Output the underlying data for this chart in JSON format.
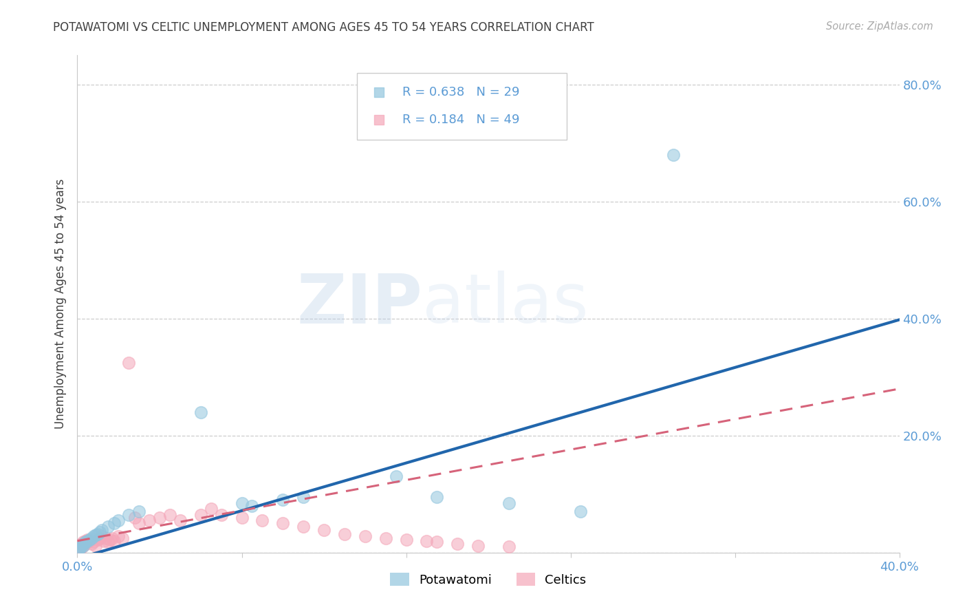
{
  "title": "POTAWATOMI VS CELTIC UNEMPLOYMENT AMONG AGES 45 TO 54 YEARS CORRELATION CHART",
  "source": "Source: ZipAtlas.com",
  "ylabel": "Unemployment Among Ages 45 to 54 years",
  "xlim": [
    0.0,
    0.4
  ],
  "ylim": [
    0.0,
    0.85
  ],
  "xticks": [
    0.0,
    0.08,
    0.16,
    0.24,
    0.32,
    0.4
  ],
  "yticks": [
    0.0,
    0.2,
    0.4,
    0.6,
    0.8
  ],
  "right_ytick_labels": [
    "",
    "20.0%",
    "40.0%",
    "60.0%",
    "80.0%"
  ],
  "xtick_labels": [
    "0.0%",
    "",
    "",
    "",
    "",
    "40.0%"
  ],
  "watermark_zip": "ZIP",
  "watermark_atlas": "atlas",
  "blue_R": "0.638",
  "blue_N": "29",
  "pink_R": "0.184",
  "pink_N": "49",
  "blue_scatter_color": "#92c5de",
  "pink_scatter_color": "#f4a7b9",
  "blue_line_color": "#2166ac",
  "pink_line_color": "#d6637a",
  "grid_color": "#c8c8c8",
  "axis_tick_color": "#5b9bd5",
  "title_color": "#404040",
  "legend_label_blue": "Potawatomi",
  "legend_label_pink": "Celtics",
  "blue_scatter_x": [
    0.001,
    0.001,
    0.002,
    0.003,
    0.003,
    0.004,
    0.005,
    0.006,
    0.007,
    0.008,
    0.009,
    0.01,
    0.011,
    0.012,
    0.015,
    0.018,
    0.02,
    0.025,
    0.03,
    0.06,
    0.08,
    0.085,
    0.1,
    0.11,
    0.155,
    0.175,
    0.21,
    0.245,
    0.29
  ],
  "blue_scatter_y": [
    0.005,
    0.008,
    0.01,
    0.012,
    0.015,
    0.018,
    0.02,
    0.022,
    0.025,
    0.028,
    0.03,
    0.032,
    0.035,
    0.038,
    0.045,
    0.05,
    0.055,
    0.065,
    0.07,
    0.24,
    0.085,
    0.08,
    0.09,
    0.095,
    0.13,
    0.095,
    0.085,
    0.07,
    0.68
  ],
  "pink_scatter_x": [
    0.001,
    0.001,
    0.002,
    0.002,
    0.003,
    0.003,
    0.004,
    0.004,
    0.005,
    0.005,
    0.006,
    0.007,
    0.008,
    0.009,
    0.01,
    0.011,
    0.012,
    0.013,
    0.014,
    0.015,
    0.016,
    0.017,
    0.018,
    0.02,
    0.022,
    0.025,
    0.028,
    0.03,
    0.035,
    0.04,
    0.045,
    0.05,
    0.06,
    0.065,
    0.07,
    0.08,
    0.09,
    0.1,
    0.11,
    0.12,
    0.13,
    0.14,
    0.15,
    0.16,
    0.17,
    0.175,
    0.185,
    0.195,
    0.21
  ],
  "pink_scatter_y": [
    0.005,
    0.01,
    0.008,
    0.015,
    0.012,
    0.018,
    0.015,
    0.02,
    0.018,
    0.022,
    0.02,
    0.015,
    0.018,
    0.012,
    0.022,
    0.025,
    0.028,
    0.02,
    0.025,
    0.018,
    0.022,
    0.025,
    0.02,
    0.028,
    0.025,
    0.325,
    0.06,
    0.05,
    0.055,
    0.06,
    0.065,
    0.055,
    0.065,
    0.075,
    0.065,
    0.06,
    0.055,
    0.05,
    0.045,
    0.038,
    0.032,
    0.028,
    0.025,
    0.022,
    0.02,
    0.018,
    0.015,
    0.012,
    0.01
  ]
}
